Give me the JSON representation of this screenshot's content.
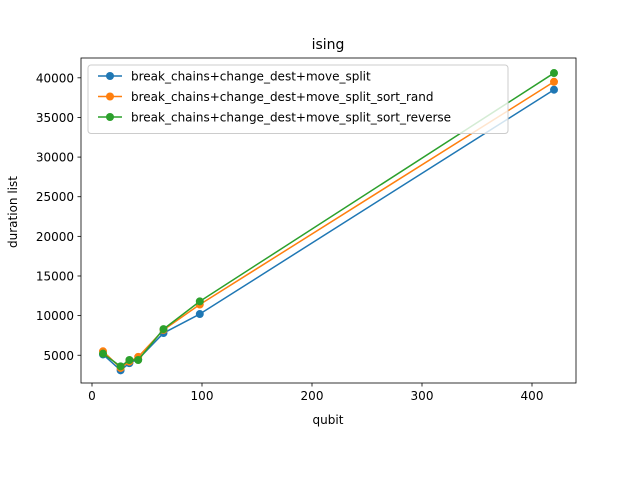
{
  "chart_data": {
    "type": "line",
    "title": "ising",
    "xlabel": "qubit",
    "ylabel": "duration list",
    "xlim": [
      -10,
      440
    ],
    "ylim": [
      1500,
      42500
    ],
    "xticks": [
      0,
      100,
      200,
      300,
      400
    ],
    "yticks": [
      5000,
      10000,
      15000,
      20000,
      25000,
      30000,
      35000,
      40000
    ],
    "grid": false,
    "legend_position": "top-left",
    "series": [
      {
        "name": "break_chains+change_dest+move_split",
        "color": "#1f77b4",
        "x": [
          10,
          26,
          34,
          42,
          65,
          98,
          420
        ],
        "y": [
          5100,
          3100,
          4000,
          4500,
          7800,
          10200,
          38500
        ]
      },
      {
        "name": "break_chains+change_dest+move_split_sort_rand",
        "color": "#ff7f0e",
        "x": [
          10,
          26,
          34,
          42,
          65,
          98,
          420
        ],
        "y": [
          5500,
          3400,
          4200,
          4800,
          8200,
          11400,
          39500
        ]
      },
      {
        "name": "break_chains+change_dest+move_split_sort_reverse",
        "color": "#2ca02c",
        "x": [
          10,
          26,
          34,
          42,
          65,
          98,
          420
        ],
        "y": [
          5200,
          3600,
          4400,
          4400,
          8300,
          11800,
          40600
        ]
      }
    ]
  }
}
